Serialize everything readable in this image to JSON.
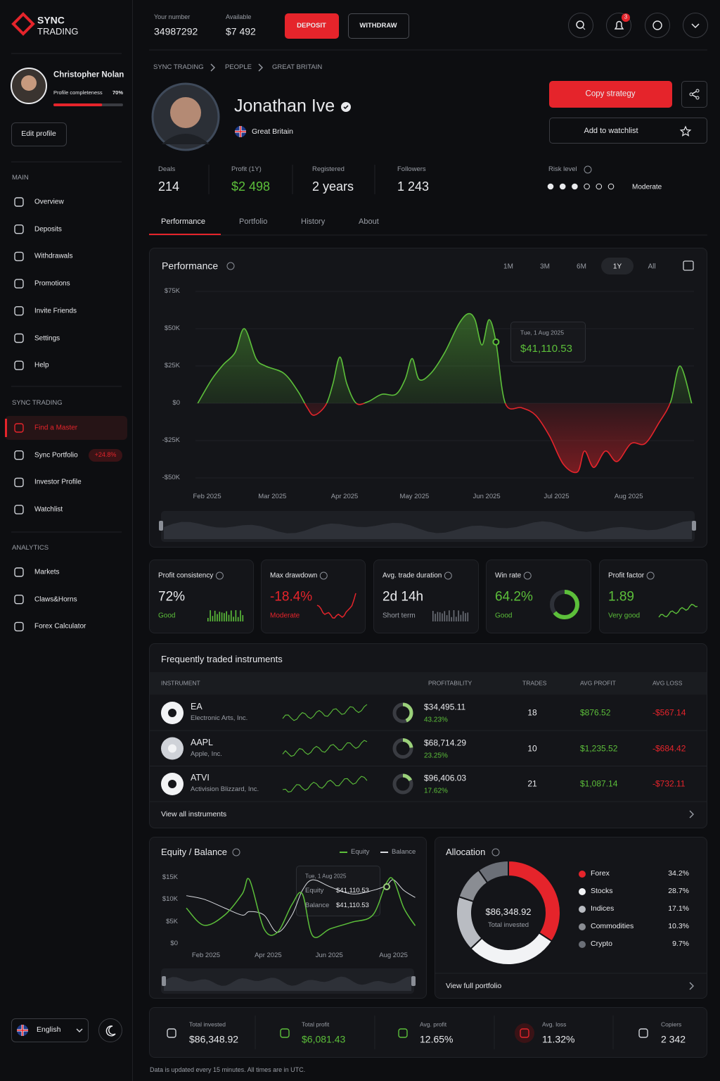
{
  "sidebar": {
    "brand": {
      "line1": "SYNC",
      "line2": "TRADING"
    },
    "user": {
      "name": "Christopher Nolan",
      "completeness_label": "Profile completeness",
      "completeness": {
        "value": 70,
        "label": "70%"
      }
    },
    "edit_profile": "Edit profile",
    "sections": [
      {
        "title": "MAIN",
        "items": [
          {
            "label": "Overview"
          },
          {
            "label": "Deposits"
          },
          {
            "label": "Withdrawals"
          },
          {
            "label": "Promotions"
          },
          {
            "label": "Invite Friends"
          },
          {
            "label": "Settings"
          },
          {
            "label": "Help"
          }
        ]
      },
      {
        "title": "SYNC TRADING",
        "items": [
          {
            "label": "Find a Master",
            "active": true
          },
          {
            "label": "Sync Portfolio",
            "badge": "+24.8%"
          },
          {
            "label": "Investor Profile"
          },
          {
            "label": "Watchlist"
          }
        ]
      },
      {
        "title": "ANALYTICS",
        "items": [
          {
            "label": "Markets"
          },
          {
            "label": "Claws&Horns"
          },
          {
            "label": "Forex Calculator"
          }
        ]
      }
    ],
    "language": "English"
  },
  "topbar": {
    "account_label": "Your number",
    "account": 34987292,
    "available_label": "Available",
    "available": "$7 492",
    "deposit": "DEPOSIT",
    "withdraw": "WITHDRAW",
    "notifications": 3
  },
  "breadcrumb": [
    "SYNC TRADING",
    "PEOPLE",
    "GREAT BRITAIN"
  ],
  "profile": {
    "name": "Jonathan Ive",
    "country": "Great Britain",
    "copy_strategy": "Copy strategy",
    "add_to_watchlist": "Add to watchlist",
    "stats": [
      {
        "label": "Deals",
        "value": 214
      },
      {
        "label": "Profit (1Y)",
        "value": "$2 498"
      },
      {
        "label": "Registered",
        "value": "2 years"
      },
      {
        "label": "Followers",
        "value": "1 243"
      }
    ],
    "risk": {
      "label": "Risk level",
      "value": "Moderate"
    }
  },
  "tabs": {
    "items": [
      "Performance",
      "Portfolio",
      "History",
      "About"
    ],
    "active": 0
  },
  "performance": {
    "title": "Performance",
    "ranges": [
      "1M",
      "3M",
      "6M",
      "1Y",
      "All"
    ],
    "active_range": 3,
    "chart": {
      "type": "area",
      "grid": true,
      "positive_color": "#5cbf3a",
      "negative_color": "#e5242b",
      "x": [
        1,
        7,
        12,
        17,
        21,
        26,
        30,
        38,
        44,
        48,
        51,
        56,
        59,
        62,
        65,
        69,
        74,
        80,
        86,
        90,
        93,
        96,
        101,
        107,
        113,
        117,
        120,
        123,
        126,
        129,
        133,
        140,
        146,
        152,
        158,
        164,
        167,
        171,
        176,
        181,
        187,
        193,
        199,
        204,
        208,
        213
      ],
      "values": [
        0,
        16000,
        26000,
        34000,
        50000,
        30000,
        25000,
        20000,
        8000,
        -3000,
        -8000,
        -1000,
        13000,
        31000,
        13000,
        0,
        1000,
        6000,
        6000,
        16000,
        30000,
        16000,
        20000,
        34000,
        53000,
        60000,
        56000,
        39000,
        56000,
        41000,
        0,
        -3000,
        -8000,
        -22000,
        -41000,
        -46000,
        -32000,
        -43000,
        -32000,
        -39000,
        -27000,
        -27000,
        -13000,
        1000,
        25000,
        0
      ],
      "xlim": [
        0,
        214
      ],
      "ylim": [
        -50000,
        75000
      ],
      "xticks": [
        {
          "value": 5,
          "label": "Feb 2025"
        },
        {
          "value": 33,
          "label": "Mar 2025"
        },
        {
          "value": 64,
          "label": "Apr 2025"
        },
        {
          "value": 94,
          "label": "May 2025"
        },
        {
          "value": 125,
          "label": "Jun 2025"
        },
        {
          "value": 155,
          "label": "Jul 2025"
        },
        {
          "value": 186,
          "label": "Aug 2025"
        }
      ],
      "yticks": [
        {
          "value": 75000,
          "label": "$75K"
        },
        {
          "value": 50000,
          "label": "$50K"
        },
        {
          "value": 25000,
          "label": "$25K"
        },
        {
          "value": 0,
          "label": "$0"
        },
        {
          "value": -25000,
          "label": "-$25K"
        },
        {
          "value": -50000,
          "label": "-$50K"
        }
      ],
      "tooltip": {
        "date": "Tue, 1 Aug 2025",
        "x": 129,
        "value": 41110.53,
        "label": "$41,110.53"
      }
    }
  },
  "metrics": [
    {
      "title": "Profit consistency",
      "value": "72%",
      "status": "Good"
    },
    {
      "title": "Max drawdown",
      "value": "-18.4%",
      "status": "Moderate"
    },
    {
      "title": "Avg. trade duration",
      "value": "2d 14h",
      "status": "Short term"
    },
    {
      "title": "Win rate",
      "value": {
        "value": 64.2,
        "label": "64.2%"
      },
      "status": "Good"
    },
    {
      "title": "Profit factor",
      "value": 1.89,
      "status": "Very good"
    }
  ],
  "instruments": {
    "title": "Frequently traded instruments",
    "columns": [
      "INSTRUMENT",
      "PROFITABILITY",
      "TRADES",
      "AVG PROFIT",
      "AVG LOSS"
    ],
    "rows": [
      {
        "ticker": "EA",
        "name": "Electronic Arts, Inc.",
        "profit": "$34,495.11",
        "profitability": {
          "value": 43.23,
          "label": "43.23%"
        },
        "trades": 18,
        "avg_profit": "$876.52",
        "avg_loss": "-$567.14"
      },
      {
        "ticker": "AAPL",
        "name": "Apple, Inc.",
        "profit": "$68,714.29",
        "profitability": {
          "value": 23.25,
          "label": "23.25%"
        },
        "trades": 10,
        "avg_profit": "$1,235.52",
        "avg_loss": "-$684.42"
      },
      {
        "ticker": "ATVI",
        "name": "Activision Blizzard, Inc.",
        "profit": "$96,406.03",
        "profitability": {
          "value": 17.62,
          "label": "17.62%"
        },
        "trades": 21,
        "avg_profit": "$1,087.14",
        "avg_loss": "-$732.11"
      }
    ],
    "footer": "View all instruments"
  },
  "equity": {
    "title": "Equity / Balance",
    "chart": {
      "type": "line",
      "grid": false,
      "x": [
        0,
        17,
        37,
        54,
        61,
        75,
        88,
        102,
        112,
        122,
        139,
        160,
        180,
        193,
        200,
        210,
        221
      ],
      "series": [
        {
          "name": "Equity",
          "color": "#5cbf3a",
          "values": [
            8100,
            4200,
            6500,
            11300,
            14500,
            3400,
            2600,
            8900,
            11300,
            1800,
            3400,
            4900,
            6500,
            13700,
            14500,
            8100,
            4100
          ]
        },
        {
          "name": "Balance",
          "color": "#d9dbe0",
          "values": [
            10900,
            10100,
            8100,
            6500,
            7300,
            6500,
            2600,
            6500,
            12100,
            14500,
            12900,
            11300,
            12100,
            13200,
            14500,
            12100,
            10500
          ]
        }
      ],
      "xlim": [
        0,
        222
      ],
      "ylim": [
        0,
        15000
      ],
      "xticks": [
        {
          "value": 19,
          "label": "Feb 2025"
        },
        {
          "value": 79,
          "label": "Apr 2025"
        },
        {
          "value": 138,
          "label": "Jun 2025"
        },
        {
          "value": 200,
          "label": "Aug 2025"
        }
      ],
      "yticks": [
        {
          "value": 15000,
          "label": "$15K"
        },
        {
          "value": 10000,
          "label": "$10K"
        },
        {
          "value": 5000,
          "label": "$5K"
        },
        {
          "value": 0,
          "label": "$0"
        }
      ],
      "tooltip": {
        "date": "Tue, 1 Aug 2025",
        "rows": [
          {
            "label": "Equity",
            "value": "$41,110.53"
          },
          {
            "label": "Balance",
            "value": "$41,110.53"
          }
        ]
      }
    }
  },
  "allocation": {
    "title": "Allocation",
    "center_value": "$86,348.92",
    "center_label": "Total invested",
    "chart": {
      "type": "pie",
      "categories": [
        "Forex",
        "Stocks",
        "Indices",
        "Commodities",
        "Crypto"
      ],
      "values": [
        34.2,
        28.7,
        17.1,
        10.3,
        9.7
      ],
      "value_labels": [
        "34.2%",
        "28.7%",
        "17.1%",
        "10.3%",
        "9.7%"
      ],
      "colors": [
        "#e5242b",
        "#f2f3f5",
        "#b9bcc2",
        "#8a8d93",
        "#6b6f77"
      ]
    },
    "footer": "View full portfolio"
  },
  "summary": [
    {
      "label": "Total invested",
      "value": "$86,348.92"
    },
    {
      "label": "Total profit",
      "value": "$6,081.43"
    },
    {
      "label": "Avg. profit",
      "value": "12.65%"
    },
    {
      "label": "Avg. loss",
      "value": "11.32%"
    },
    {
      "label": "Copiers",
      "value": "2 342"
    }
  ],
  "footer_note": "Data is updated every 15 minutes. All times are in UTC."
}
